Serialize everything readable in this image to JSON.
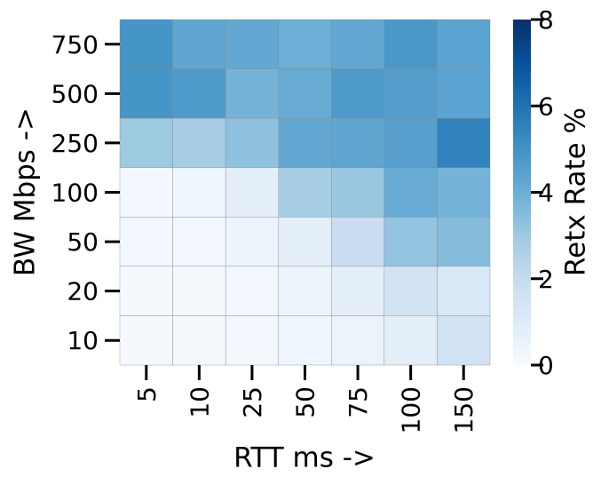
{
  "chart_data": {
    "type": "heatmap",
    "xlabel": "RTT ms ->",
    "ylabel": "BW Mbps ->",
    "colorbar_label": "Retx Rate %",
    "x_categories": [
      "5",
      "10",
      "25",
      "50",
      "75",
      "100",
      "150"
    ],
    "y_categories": [
      "750",
      "500",
      "250",
      "100",
      "50",
      "20",
      "10"
    ],
    "values": [
      [
        4.9,
        4.3,
        4.2,
        4.0,
        4.2,
        4.8,
        4.4
      ],
      [
        4.9,
        4.7,
        3.8,
        4.1,
        4.7,
        4.6,
        4.4
      ],
      [
        3.0,
        2.8,
        3.3,
        4.2,
        4.3,
        4.5,
        5.5
      ],
      [
        0.2,
        0.3,
        0.8,
        2.8,
        3.1,
        4.1,
        3.8
      ],
      [
        0.2,
        0.2,
        0.4,
        0.8,
        1.8,
        3.2,
        3.5
      ],
      [
        0.1,
        0.1,
        0.2,
        0.4,
        0.8,
        1.5,
        1.2
      ],
      [
        0.1,
        0.1,
        0.2,
        0.3,
        0.5,
        0.8,
        1.5
      ]
    ],
    "colormap": "Blues",
    "zlim": [
      0,
      8
    ],
    "zticks": [
      0,
      2,
      4,
      6,
      8
    ]
  }
}
